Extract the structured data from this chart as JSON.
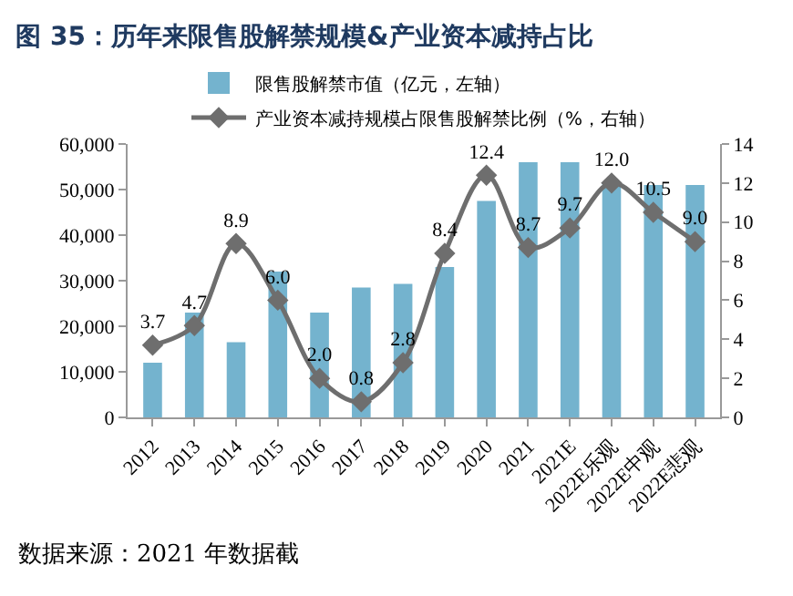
{
  "chart_data": {
    "type": "bar",
    "title": "图 35：历年来限售股解禁规模&产业资本减持占比",
    "categories": [
      "2012",
      "2013",
      "2014",
      "2015",
      "2016",
      "2017",
      "2018",
      "2019",
      "2020",
      "2021",
      "2021E",
      "2022E乐观",
      "2022E中观",
      "2022E悲观"
    ],
    "series": [
      {
        "name": "限售股解禁市值（亿元，左轴）",
        "color": "#74b3ce",
        "values": [
          12000,
          23000,
          16500,
          32000,
          23000,
          28500,
          29300,
          33000,
          47500,
          56000,
          56000,
          51500,
          51000,
          51000
        ]
      },
      {
        "name": "产业资本减持规模占限售股解禁比例（%，右轴）",
        "type": "line",
        "axis": "y2",
        "color": "#6e6e6e",
        "marker": "diamond",
        "line_style": "solid",
        "value_labels": [
          "3.7",
          "4.7",
          "8.9",
          "6.0",
          "2.0",
          "0.8",
          "2.8",
          "8.4",
          "12.4",
          "8.7",
          "9.7",
          "12.0",
          "10.5",
          "9.0"
        ],
        "values": [
          3.7,
          4.7,
          8.9,
          6.0,
          2.0,
          0.8,
          2.8,
          8.4,
          12.4,
          8.7,
          9.7,
          12.0,
          10.5,
          9.0
        ]
      }
    ],
    "ylim": [
      0,
      60000
    ],
    "yticks": [
      0,
      {
        "value": 10000,
        "label": "10,000"
      },
      {
        "value": 20000,
        "label": "20,000"
      },
      {
        "value": 30000,
        "label": "30,000"
      },
      {
        "value": 40000,
        "label": "40,000"
      },
      {
        "value": 50000,
        "label": "50,000"
      },
      {
        "value": 60000,
        "label": "60,000"
      }
    ],
    "y2lim": [
      0,
      14
    ],
    "y2ticks": [
      0,
      2,
      4,
      6,
      8,
      10,
      12,
      14
    ],
    "grid": false,
    "legend": "top",
    "annotations": [
      "数据来源：2021 年数据截"
    ]
  }
}
